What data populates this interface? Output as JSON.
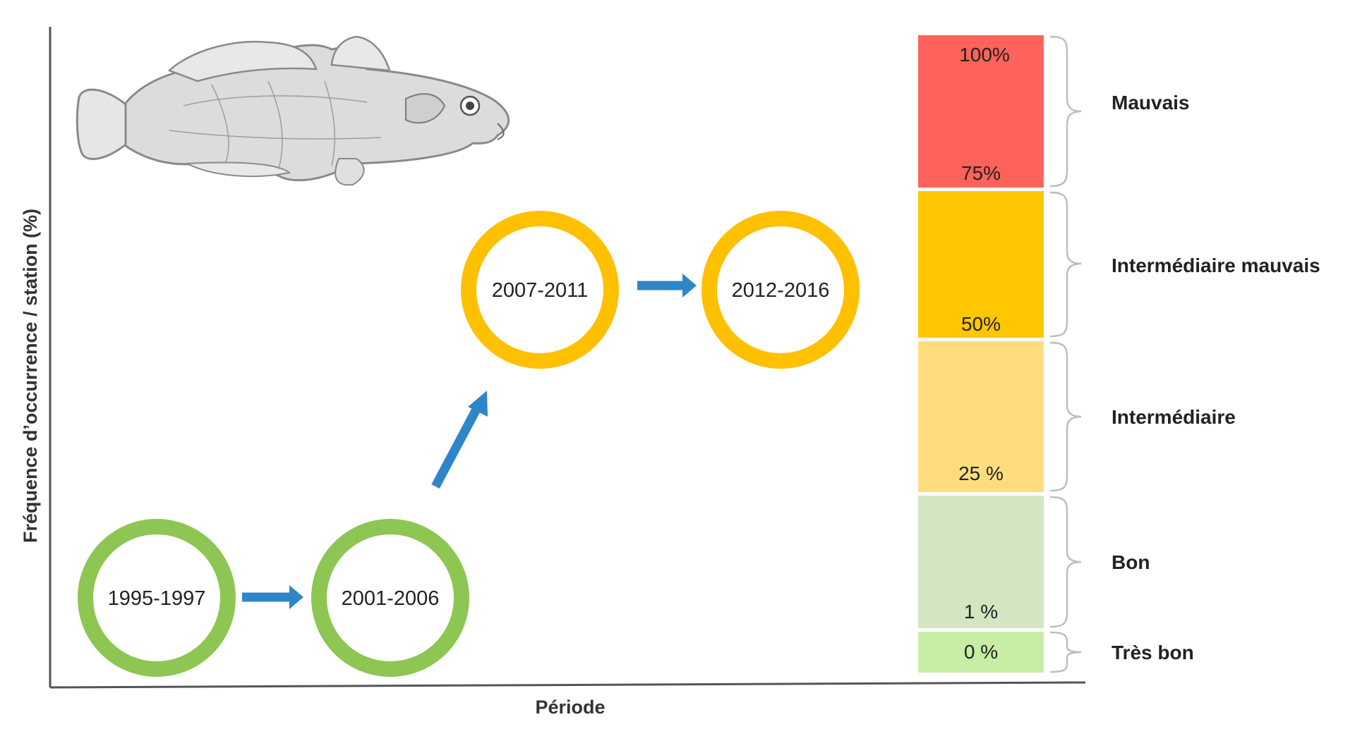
{
  "axes": {
    "ylabel": "Fréquence d’occurrence / station (%)",
    "xlabel": "Période"
  },
  "illustration": {
    "icon": "goby-fish-illustration"
  },
  "periods": [
    {
      "label": "1995-1997",
      "status": "Bon",
      "color": "#8DC653"
    },
    {
      "label": "2001-2006",
      "status": "Bon",
      "color": "#8DC653"
    },
    {
      "label": "2007-2011",
      "status": "Intermédiaire mauvais",
      "color": "#FFC000"
    },
    {
      "label": "2012-2016",
      "status": "Intermédiaire mauvais",
      "color": "#FFC000"
    }
  ],
  "arrow_color": "#2E86C8",
  "scale": {
    "bands": [
      {
        "category": "Mauvais",
        "color": "#FF625A",
        "top_label": "100%",
        "bottom_label": "75%"
      },
      {
        "category": "Intermédiaire mauvais",
        "color": "#FFC700",
        "bottom_label": "50%"
      },
      {
        "category": "Intermédiaire",
        "color": "#FFDD7F",
        "bottom_label": "25 %"
      },
      {
        "category": "Bon",
        "color": "#D2E6C2",
        "bottom_label": "1 %"
      },
      {
        "category": "Très bon",
        "color": "#C8EEA6",
        "bottom_label": "0 %"
      }
    ]
  }
}
